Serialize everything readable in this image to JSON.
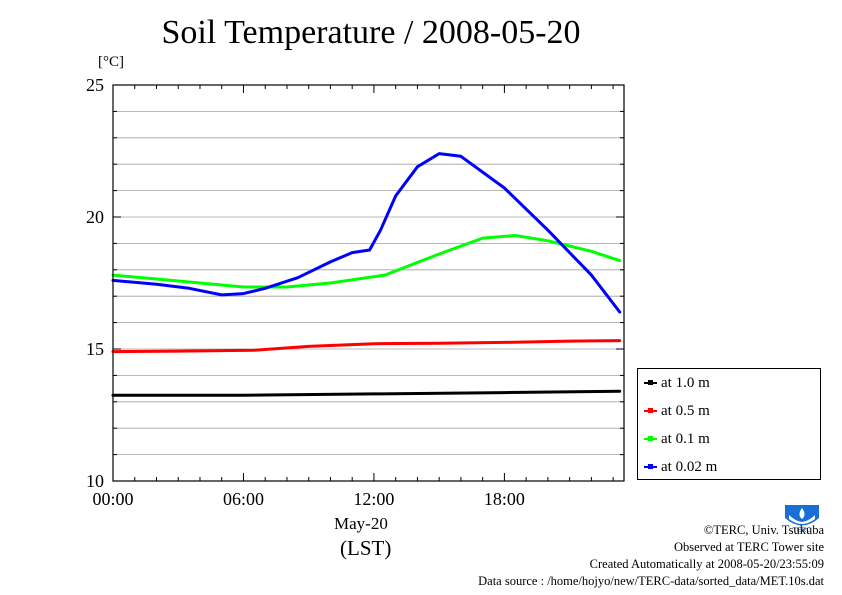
{
  "header": {
    "title": "Soil Temperature / 2008-05-20",
    "unit": "[°C]"
  },
  "chart_data": {
    "type": "line",
    "title": "Soil Temperature / 2008-05-20",
    "ylabel": "[°C]",
    "xlabel": "(LST)",
    "x_category": "May-20",
    "xlim": [
      0,
      23.5
    ],
    "ylim": [
      10,
      25
    ],
    "yticks": [
      10,
      15,
      20,
      25
    ],
    "xticks": [
      {
        "value": 0,
        "label": "00:00"
      },
      {
        "value": 6,
        "label": "06:00"
      },
      {
        "value": 12,
        "label": "12:00"
      },
      {
        "value": 18,
        "label": "18:00"
      }
    ],
    "grid": true,
    "legend_position": "bottom-right, outside",
    "series": [
      {
        "name": "at 1.0 m",
        "color": "#000000",
        "x": [
          0,
          6,
          12,
          18,
          23.3
        ],
        "y": [
          13.25,
          13.25,
          13.3,
          13.35,
          13.4
        ]
      },
      {
        "name": "at 0.5 m",
        "color": "#ff0000",
        "x": [
          0,
          3,
          6.5,
          9,
          12,
          15,
          18,
          21,
          23.3
        ],
        "y": [
          14.9,
          14.92,
          14.95,
          15.1,
          15.2,
          15.22,
          15.25,
          15.3,
          15.32
        ]
      },
      {
        "name": "at 0.1 m",
        "color": "#00ff00",
        "x": [
          0,
          2,
          4,
          6,
          8,
          10,
          12.5,
          15,
          17,
          18.5,
          20,
          22,
          23.3
        ],
        "y": [
          17.8,
          17.65,
          17.5,
          17.35,
          17.35,
          17.5,
          17.8,
          18.6,
          19.2,
          19.3,
          19.1,
          18.7,
          18.35
        ]
      },
      {
        "name": "at 0.02 m",
        "color": "#0000ff",
        "x": [
          0,
          2,
          3.5,
          5,
          6,
          7,
          8.5,
          10,
          11,
          11.8,
          12.3,
          13,
          14,
          15,
          16,
          18,
          20,
          22,
          23.3
        ],
        "y": [
          17.6,
          17.45,
          17.3,
          17.05,
          17.1,
          17.3,
          17.7,
          18.3,
          18.65,
          18.75,
          19.5,
          20.8,
          21.9,
          22.4,
          22.3,
          21.1,
          19.5,
          17.8,
          16.4
        ]
      }
    ]
  },
  "footer": {
    "copyright": "©TERC, Univ. Tsukuba",
    "site": "Observed at TERC Tower site",
    "created": "Created Automatically at 2008-05-20/23:55:09",
    "source": "Data source : /home/hojyo/new/TERC-data/sorted_data/MET.10s.dat"
  },
  "logo": {
    "text": "TERC",
    "color": "#1a6fd6"
  }
}
